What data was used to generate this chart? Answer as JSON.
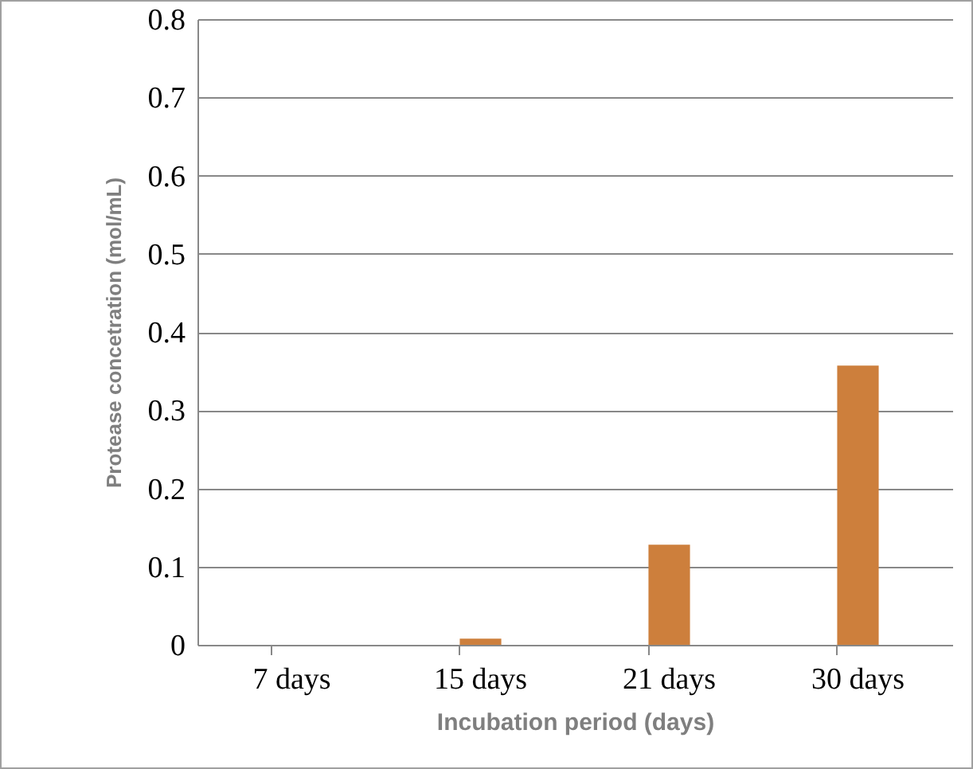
{
  "chart_data": {
    "type": "bar",
    "xlabel": "Incubation period (days)",
    "ylabel": "Protease concetration (mol/mL)",
    "categories": [
      "7 days",
      "15 days",
      "21 days",
      "30 days"
    ],
    "values": [
      0,
      0.008,
      0.128,
      0.357
    ],
    "color": "#cd7f3c",
    "ylim": [
      0,
      0.8
    ],
    "yticks": [
      0,
      0.1,
      0.2,
      0.3,
      0.4,
      0.5,
      0.6,
      0.7,
      0.8
    ],
    "grid": "y"
  }
}
